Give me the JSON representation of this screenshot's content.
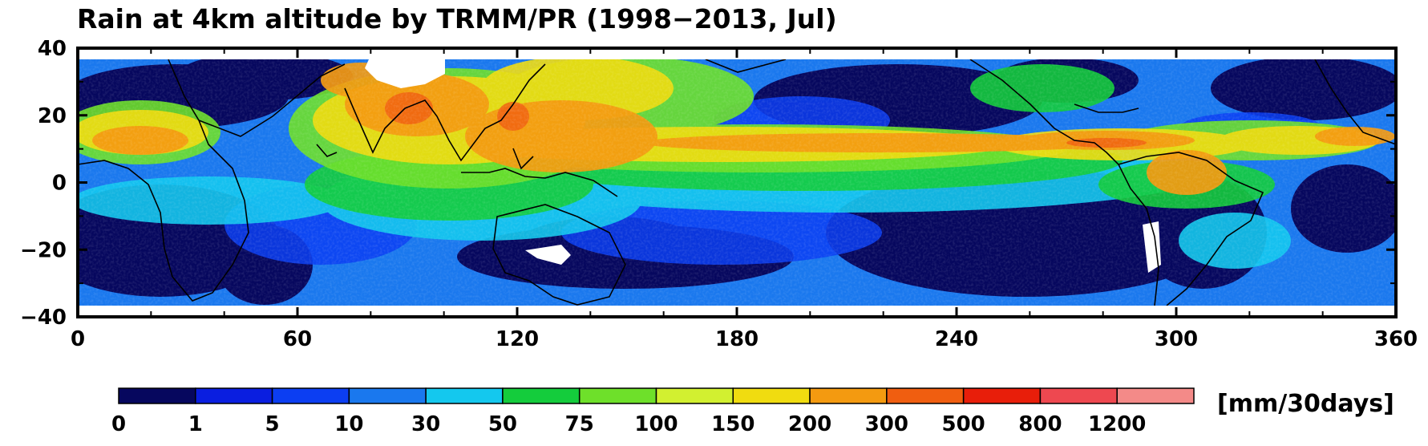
{
  "title": "Rain at 4km altitude by TRMM/PR (1998−2013, Jul)",
  "map": {
    "x_ticks": [
      "0",
      "60",
      "120",
      "180",
      "240",
      "300",
      "360"
    ],
    "y_ticks": [
      "40",
      "20",
      "0",
      "−20",
      "−40"
    ],
    "x_range": [
      0,
      360
    ],
    "y_range": [
      -40,
      40
    ],
    "data_lat_range": [
      -36,
      36
    ]
  },
  "colorbar": {
    "labels": [
      "0",
      "1",
      "5",
      "10",
      "30",
      "50",
      "75",
      "100",
      "150",
      "200",
      "300",
      "500",
      "800",
      "1200"
    ],
    "colors": [
      "#06075e",
      "#0a1ee0",
      "#0c3ef2",
      "#1a78ee",
      "#14c8ee",
      "#14cc3c",
      "#6ee02a",
      "#d2f030",
      "#f0dc10",
      "#f49a10",
      "#f05e10",
      "#e81e0a",
      "#ee4850",
      "#f48a88"
    ],
    "units": "[mm/30days]"
  }
}
